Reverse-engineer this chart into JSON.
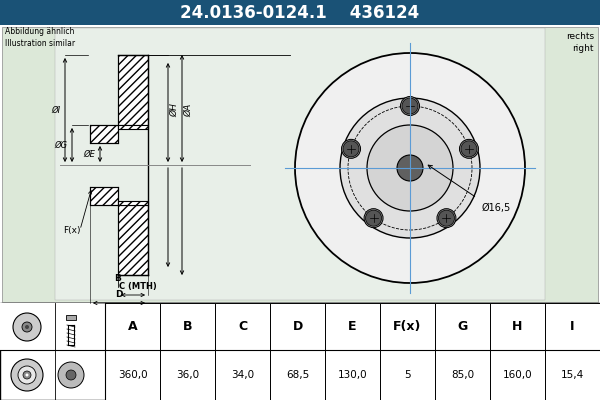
{
  "title_part_number": "24.0136-0124.1",
  "title_ref_number": "436124",
  "title_bg_color": "#1a5276",
  "title_text_color": "#ffffff",
  "abbildung_text": "Abbildung ähnlich\nIllustration similar",
  "rechts_text": "rechts\nright",
  "diameter_label": "Ø16,5",
  "table_headers": [
    "A",
    "B",
    "C",
    "D",
    "E",
    "F(x)",
    "G",
    "H",
    "I"
  ],
  "table_values": [
    "360,0",
    "36,0",
    "34,0",
    "68,5",
    "130,0",
    "5",
    "85,0",
    "160,0",
    "15,4"
  ],
  "bg_color": "#ffffff",
  "diagram_bg": "#dce8d8",
  "crosshair_color": "#5b9bd5",
  "n_bolts": 5
}
